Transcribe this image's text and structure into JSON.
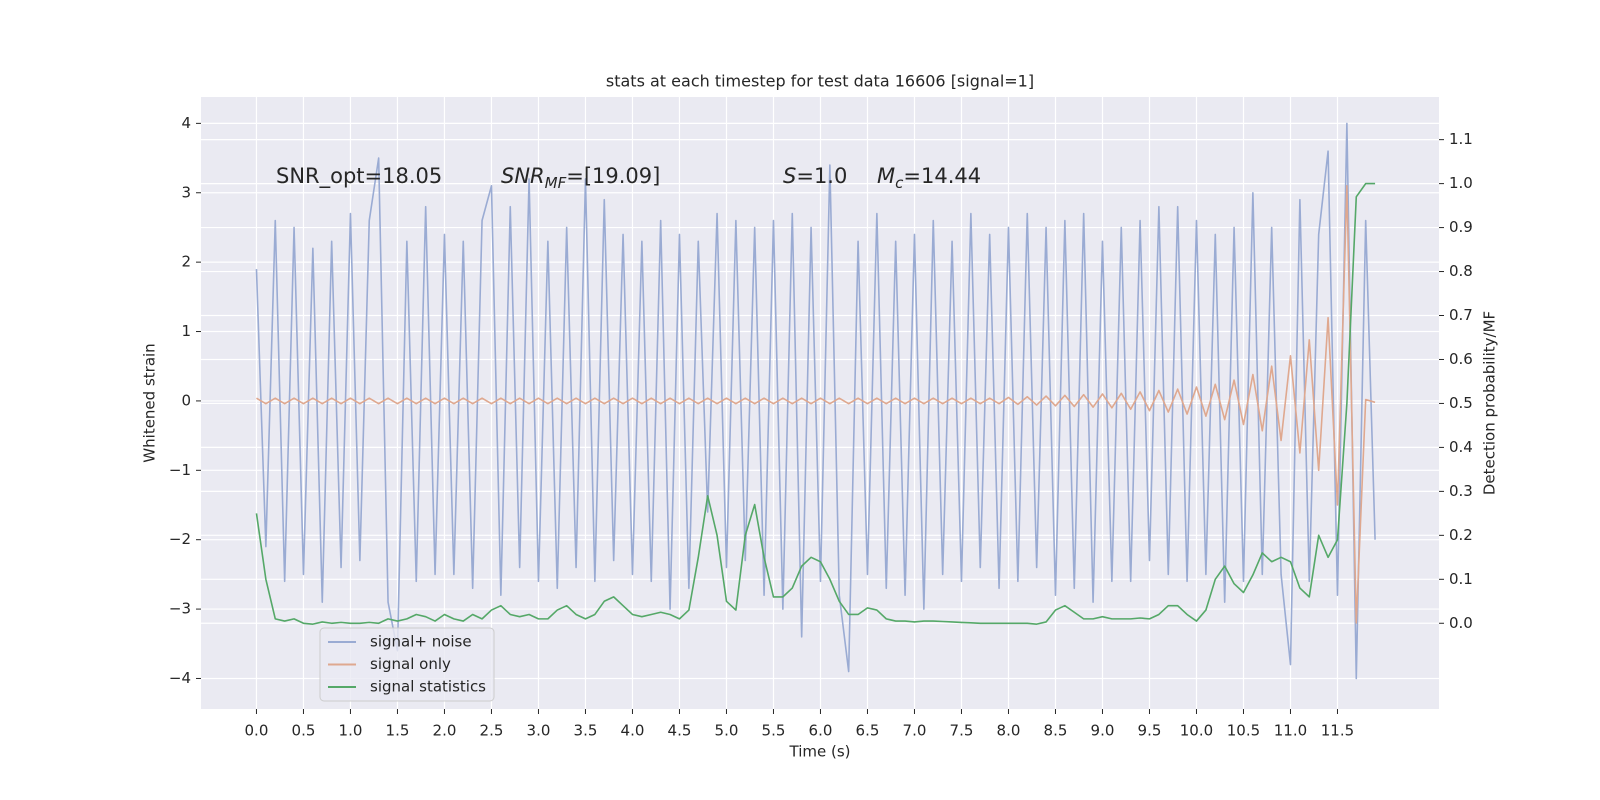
{
  "chart_data": {
    "type": "line",
    "title": "stats at each timestep for test data 16606 [signal=1]",
    "x_label": "Time (s)",
    "y_label": "Whitened strain",
    "y2_label": "Detection probability/MF",
    "annotations": [
      {
        "text": "SNR_opt=18.05"
      },
      {
        "math": "SNR",
        "sub": "MF",
        "text": "=[19.09]"
      },
      {
        "math": "S",
        "text": "=1.0"
      },
      {
        "math": "M",
        "sub": "c",
        "text": "=14.44"
      }
    ],
    "grid": true,
    "legend": "lower left",
    "xlim": [
      -0.59,
      12.58
    ],
    "ylim": [
      -4.44,
      4.38
    ],
    "y2lim": [
      -0.195,
      1.197
    ],
    "xticks": [
      {
        "value": 0,
        "label": "0.0"
      },
      {
        "value": 0.5,
        "label": "0.5"
      },
      {
        "value": 1,
        "label": "1.0"
      },
      {
        "value": 1.5,
        "label": "1.5"
      },
      {
        "value": 2,
        "label": "2.0"
      },
      {
        "value": 2.5,
        "label": "2.5"
      },
      {
        "value": 3,
        "label": "3.0"
      },
      {
        "value": 3.5,
        "label": "3.5"
      },
      {
        "value": 4,
        "label": "4.0"
      },
      {
        "value": 4.5,
        "label": "4.5"
      },
      {
        "value": 5,
        "label": "5.0"
      },
      {
        "value": 5.5,
        "label": "5.5"
      },
      {
        "value": 6,
        "label": "6.0"
      },
      {
        "value": 6.5,
        "label": "6.5"
      },
      {
        "value": 7,
        "label": "7.0"
      },
      {
        "value": 7.5,
        "label": "7.5"
      },
      {
        "value": 8,
        "label": "8.0"
      },
      {
        "value": 8.5,
        "label": "8.5"
      },
      {
        "value": 9,
        "label": "9.0"
      },
      {
        "value": 9.5,
        "label": "9.5"
      },
      {
        "value": 10,
        "label": "10.0"
      },
      {
        "value": 10.5,
        "label": "10.5"
      },
      {
        "value": 11,
        "label": "11.0"
      },
      {
        "value": 11.5,
        "label": "11.5"
      }
    ],
    "yticks": [
      {
        "value": -4,
        "label": "−4"
      },
      {
        "value": -3,
        "label": "−3"
      },
      {
        "value": -2,
        "label": "−2"
      },
      {
        "value": -1,
        "label": "−1"
      },
      0,
      1,
      2,
      3,
      4
    ],
    "y2ticks": [
      {
        "value": 0,
        "label": "0.0"
      },
      {
        "value": 0.1,
        "label": "0.1"
      },
      {
        "value": 0.2,
        "label": "0.2"
      },
      {
        "value": 0.3,
        "label": "0.3"
      },
      {
        "value": 0.4,
        "label": "0.4"
      },
      {
        "value": 0.5,
        "label": "0.5"
      },
      {
        "value": 0.6,
        "label": "0.6"
      },
      {
        "value": 0.7,
        "label": "0.7"
      },
      {
        "value": 0.8,
        "label": "0.8"
      },
      {
        "value": 0.9,
        "label": "0.9"
      },
      {
        "value": 1,
        "label": "1.0"
      },
      {
        "value": 1.1,
        "label": "1.1"
      }
    ],
    "x": [
      0,
      0.1,
      0.2,
      0.3,
      0.4,
      0.5,
      0.6,
      0.7,
      0.8,
      0.9,
      1,
      1.1,
      1.2,
      1.3,
      1.4,
      1.5,
      1.6,
      1.7,
      1.8,
      1.9,
      2,
      2.1,
      2.2,
      2.3,
      2.4,
      2.5,
      2.6,
      2.7,
      2.8,
      2.9,
      3,
      3.1,
      3.2,
      3.3,
      3.4,
      3.5,
      3.6,
      3.7,
      3.8,
      3.9,
      4,
      4.1,
      4.2,
      4.3,
      4.4,
      4.5,
      4.6,
      4.7,
      4.8,
      4.9,
      5,
      5.1,
      5.2,
      5.3,
      5.4,
      5.5,
      5.6,
      5.7,
      5.8,
      5.9,
      6,
      6.1,
      6.2,
      6.3,
      6.4,
      6.5,
      6.6,
      6.7,
      6.8,
      6.9,
      7,
      7.1,
      7.2,
      7.3,
      7.4,
      7.5,
      7.6,
      7.7,
      7.8,
      7.9,
      8,
      8.1,
      8.2,
      8.3,
      8.4,
      8.5,
      8.6,
      8.7,
      8.8,
      8.9,
      9,
      9.1,
      9.2,
      9.3,
      9.4,
      9.5,
      9.6,
      9.7,
      9.8,
      9.9,
      10,
      10.1,
      10.2,
      10.3,
      10.4,
      10.5,
      10.6,
      10.7,
      10.8,
      10.9,
      11,
      11.1,
      11.2,
      11.3,
      11.4,
      11.5,
      11.6,
      11.7,
      11.8,
      11.9
    ],
    "series": [
      {
        "name": "signal+ noise",
        "color": "#9aabd3",
        "values": [
          1.9,
          -2.1,
          2.6,
          -2.6,
          2.5,
          -2.5,
          2.2,
          -2.9,
          2.3,
          -2.4,
          2.7,
          -2.3,
          2.6,
          3.5,
          -2.9,
          -3.6,
          2.3,
          -2.6,
          2.8,
          -2.5,
          2.4,
          -2.5,
          2.3,
          -2.7,
          2.6,
          3.1,
          -2.8,
          2.8,
          -2.4,
          3.2,
          -2.6,
          2.3,
          -2.7,
          2.5,
          -2.4,
          3.2,
          -2.6,
          2.9,
          -2.3,
          2.4,
          -2.5,
          2.3,
          -2.6,
          2.6,
          -3.0,
          2.4,
          -2.7,
          2.3,
          -1.6,
          2.7,
          -2.4,
          2.6,
          -2.3,
          2.5,
          -2.8,
          2.6,
          -3.0,
          2.7,
          -3.4,
          2.5,
          -2.6,
          3.4,
          -2.8,
          -3.9,
          2.3,
          -2.5,
          2.7,
          -2.7,
          2.3,
          -2.8,
          2.4,
          -3.0,
          2.6,
          -2.5,
          2.3,
          -2.6,
          2.7,
          -2.4,
          2.4,
          -2.7,
          2.5,
          -2.6,
          2.7,
          -2.4,
          2.5,
          -2.8,
          2.6,
          -2.7,
          2.7,
          -2.9,
          2.3,
          -2.6,
          2.5,
          -2.6,
          2.6,
          -2.3,
          2.8,
          -2.5,
          2.8,
          -2.6,
          2.6,
          -2.5,
          2.4,
          -2.9,
          2.5,
          -2.6,
          3.0,
          -2.5,
          2.5,
          -2.5,
          -3.8,
          2.9,
          -2.6,
          2.4,
          3.6,
          -2.8,
          4.0,
          -4.0,
          2.6,
          -2.0
        ]
      },
      {
        "name": "signal only",
        "color": "#dfa88f",
        "values": [
          0.04,
          -0.04,
          0.04,
          -0.04,
          0.04,
          -0.04,
          0.04,
          -0.04,
          0.04,
          -0.04,
          0.04,
          -0.04,
          0.04,
          -0.04,
          0.04,
          -0.04,
          0.04,
          -0.04,
          0.04,
          -0.04,
          0.04,
          -0.04,
          0.04,
          -0.04,
          0.04,
          -0.04,
          0.04,
          -0.04,
          0.04,
          -0.04,
          0.04,
          -0.04,
          0.04,
          -0.04,
          0.04,
          -0.04,
          0.04,
          -0.04,
          0.04,
          -0.04,
          0.04,
          -0.04,
          0.04,
          -0.04,
          0.04,
          -0.04,
          0.04,
          -0.04,
          0.04,
          -0.04,
          0.04,
          -0.04,
          0.04,
          -0.04,
          0.04,
          -0.04,
          0.04,
          -0.04,
          0.04,
          -0.04,
          0.04,
          -0.04,
          0.04,
          -0.04,
          0.04,
          -0.04,
          0.04,
          -0.04,
          0.04,
          -0.04,
          0.04,
          -0.04,
          0.04,
          -0.04,
          0.04,
          -0.04,
          0.04,
          -0.04,
          0.04,
          -0.04,
          0.05,
          -0.05,
          0.06,
          -0.06,
          0.07,
          -0.07,
          0.08,
          -0.08,
          0.09,
          -0.09,
          0.1,
          -0.1,
          0.11,
          -0.12,
          0.13,
          -0.14,
          0.15,
          -0.16,
          0.17,
          -0.19,
          0.2,
          -0.22,
          0.24,
          -0.27,
          0.3,
          -0.34,
          0.38,
          -0.43,
          0.5,
          -0.57,
          0.65,
          -0.75,
          0.88,
          -1.0,
          1.2,
          -1.5,
          3.1,
          -3.2,
          0.02,
          -0.02
        ]
      },
      {
        "name": "signal statistics",
        "color": "#55a868",
        "axis": "y2",
        "values": [
          0.25,
          0.1,
          0.01,
          0.005,
          0.01,
          0.0,
          -0.002,
          0.003,
          0.0,
          0.002,
          0.0,
          0.0,
          0.002,
          0.0,
          0.01,
          0.005,
          0.01,
          0.02,
          0.015,
          0.005,
          0.02,
          0.01,
          0.005,
          0.02,
          0.01,
          0.03,
          0.04,
          0.02,
          0.015,
          0.02,
          0.01,
          0.01,
          0.03,
          0.04,
          0.02,
          0.01,
          0.02,
          0.05,
          0.06,
          0.04,
          0.02,
          0.015,
          0.02,
          0.025,
          0.02,
          0.01,
          0.03,
          0.15,
          0.29,
          0.2,
          0.05,
          0.03,
          0.2,
          0.27,
          0.15,
          0.06,
          0.06,
          0.08,
          0.13,
          0.15,
          0.14,
          0.1,
          0.05,
          0.02,
          0.02,
          0.035,
          0.03,
          0.01,
          0.005,
          0.005,
          0.003,
          0.005,
          0.005,
          0.004,
          0.003,
          0.002,
          0.001,
          0.0,
          0.0,
          0.0,
          0.0,
          0.0,
          0.0,
          -0.002,
          0.003,
          0.03,
          0.04,
          0.025,
          0.01,
          0.01,
          0.015,
          0.01,
          0.01,
          0.01,
          0.012,
          0.01,
          0.02,
          0.04,
          0.04,
          0.02,
          0.005,
          0.03,
          0.1,
          0.13,
          0.09,
          0.07,
          0.11,
          0.16,
          0.14,
          0.15,
          0.14,
          0.08,
          0.06,
          0.2,
          0.15,
          0.19,
          0.5,
          0.97,
          1.0,
          1.0
        ]
      }
    ]
  }
}
